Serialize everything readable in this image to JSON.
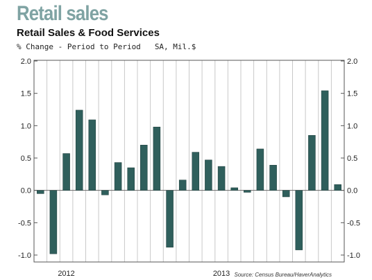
{
  "headline": "Retail sales",
  "chart_data": {
    "type": "bar",
    "title": "Retail Sales & Food Services",
    "subtitle": "% Change - Period to Period",
    "units": "SA, Mil.$",
    "ylim": [
      -1.0,
      2.0
    ],
    "yticks": [
      "2.0",
      "1.5",
      "1.0",
      "0.5",
      "0.0",
      "-0.5",
      "-1.0"
    ],
    "yticks_values": [
      2.0,
      1.5,
      1.0,
      0.5,
      0.0,
      -0.5,
      -1.0
    ],
    "x_labels": [
      {
        "label": "2012",
        "at_index": 2
      },
      {
        "label": "2013",
        "at_index": 14
      }
    ],
    "values": [
      -0.05,
      -0.98,
      0.57,
      1.24,
      1.09,
      -0.07,
      0.43,
      0.35,
      0.7,
      0.98,
      -0.88,
      0.16,
      0.59,
      0.47,
      0.37,
      0.04,
      -0.03,
      0.64,
      0.39,
      -0.1,
      -0.92,
      0.85,
      1.54,
      0.09
    ],
    "bar_color": "#2f5f5c",
    "grid": "vertical",
    "source": "Source: Census Bureau/HaverAnalytics"
  }
}
